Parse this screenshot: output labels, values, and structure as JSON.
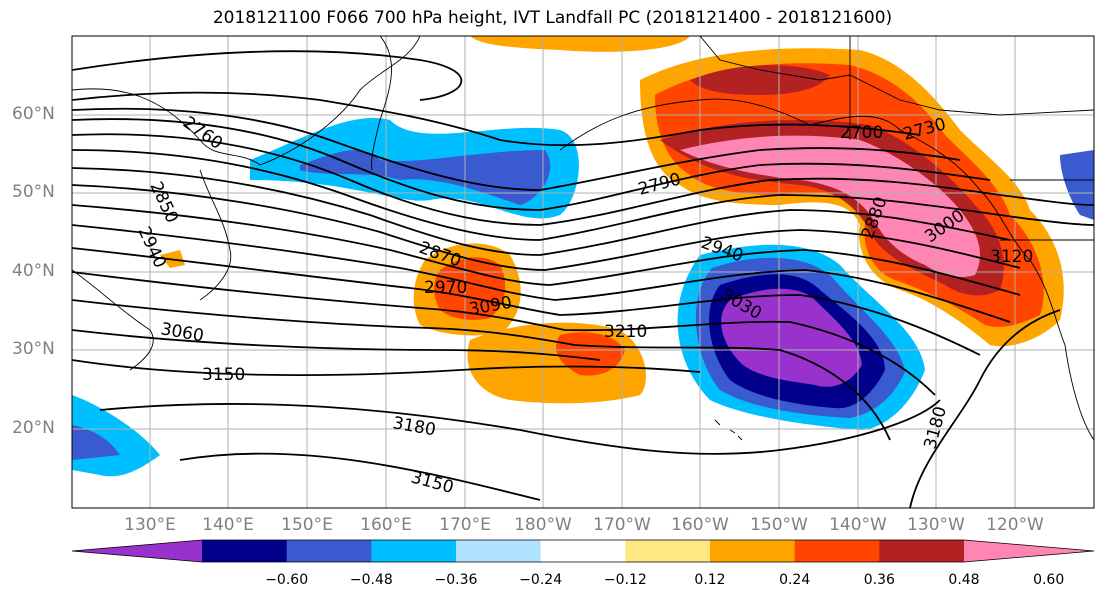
{
  "title": "2018121100 F066 700 hPa height, IVT Landfall PC (2018121400 - 2018121600)",
  "lat_labels": [
    "60°N",
    "50°N",
    "40°N",
    "30°N",
    "20°N"
  ],
  "lon_labels": [
    "130°E",
    "140°E",
    "150°E",
    "160°E",
    "170°E",
    "180°W",
    "170°W",
    "160°W",
    "150°W",
    "140°W",
    "130°W",
    "120°W"
  ],
  "colorbar": {
    "ticks": [
      "−0.60",
      "−0.48",
      "−0.36",
      "−0.24",
      "−0.12",
      "0.12",
      "0.24",
      "0.36",
      "0.48",
      "0.60"
    ],
    "colors": [
      "#9932cc",
      "#00008b",
      "#3a5bcf",
      "#00bfff",
      "#b0e2ff",
      "#ffffff",
      "#ffe884",
      "#ffa500",
      "#ff4500",
      "#b22222",
      "#ff85b3"
    ]
  },
  "contour_labels": [
    "2760",
    "2850",
    "2940",
    "2700",
    "2730",
    "2790",
    "2880",
    "3000",
    "3120",
    "2940",
    "2870",
    "2970",
    "3090",
    "3030",
    "3060",
    "3150",
    "3210",
    "3180",
    "3150",
    "3180"
  ],
  "colors": {
    "land_line": "#000000",
    "contour": "#000000",
    "grid": "#b0b0b0"
  }
}
